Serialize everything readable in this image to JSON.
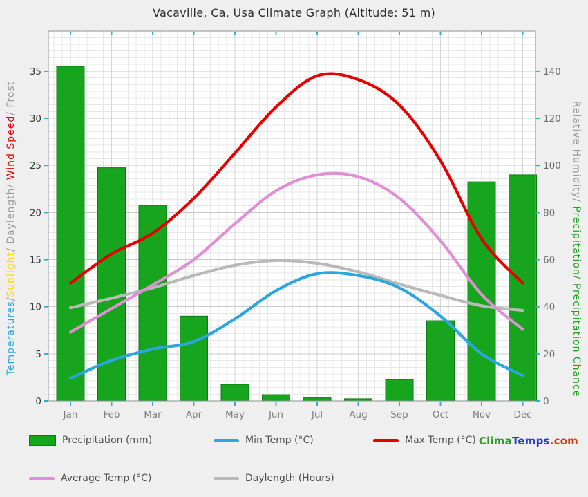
{
  "title": "Vacaville, Ca, Usa Climate Graph (Altitude: 51 m)",
  "watermark": {
    "clima": "Clima",
    "temps": "Temps",
    "com": ".com"
  },
  "legend": {
    "precipitation": "Precipitation (mm)",
    "min_temp": "Min Temp (°C)",
    "max_temp": "Max Temp (°C)",
    "avg_temp": "Average Temp (°C)",
    "daylength": "Daylength (Hours)"
  },
  "left_axis_label": {
    "segments": [
      {
        "text": "Temperatures",
        "color": "#2ba6e0"
      },
      {
        "text": "/",
        "color": "#9b9b9b"
      },
      {
        "text": "Sunlight",
        "color": "#ffd800"
      },
      {
        "text": "/ ",
        "color": "#9b9b9b"
      },
      {
        "text": "Daylength",
        "color": "#9b9b9b"
      },
      {
        "text": "/ ",
        "color": "#9b9b9b"
      },
      {
        "text": "Wind Speed",
        "color": "#e60000"
      },
      {
        "text": "/ ",
        "color": "#9b9b9b"
      },
      {
        "text": "Frost",
        "color": "#9b9b9b"
      }
    ]
  },
  "right_axis_label": {
    "segments": [
      {
        "text": "Relative Humidity/",
        "color": "#9b9b9b"
      },
      {
        "text": " Precipitation/",
        "color": "#17a51e"
      },
      {
        "text": " Precipitation Chance",
        "color": "#17a51e"
      }
    ]
  },
  "colors": {
    "precipitation_green": "#17a51e",
    "precipitation_border": "#0d7d12",
    "min_temp_blue": "#2ba6e0",
    "max_temp_red": "#e60000",
    "avg_temp_pink": "#e08fd6",
    "daylength_gray": "#b9b9b9",
    "tick_teal": "#2fb0c4",
    "watermark_green": "#2e9b2e",
    "watermark_blue": "#2b3bc8",
    "watermark_red": "#d04018"
  },
  "chart_data": {
    "type": "bar+line",
    "categories": [
      "Jan",
      "Feb",
      "Mar",
      "Apr",
      "May",
      "Jun",
      "Jul",
      "Aug",
      "Sep",
      "Oct",
      "Nov",
      "Dec"
    ],
    "left_axis": {
      "ticks": [
        0,
        5,
        10,
        15,
        20,
        25,
        30,
        35
      ],
      "range": [
        0,
        39.25
      ]
    },
    "right_axis": {
      "ticks": [
        0,
        20,
        40,
        60,
        80,
        100,
        120,
        140
      ],
      "ratio_to_left": 4
    },
    "series": [
      {
        "key": "precipitation",
        "name": "Precipitation (mm)",
        "type": "bar",
        "axis": "right",
        "color": "#17a51e",
        "border_color": "#0d7d12",
        "values": [
          142,
          99,
          83,
          36,
          7,
          2.6,
          1.3,
          0.9,
          9,
          34,
          93,
          96
        ]
      },
      {
        "key": "daylength",
        "name": "Daylength (Hours)",
        "type": "line",
        "axis": "left",
        "color": "#b9b9b9",
        "values": [
          9.9,
          10.9,
          12.0,
          13.3,
          14.4,
          14.9,
          14.6,
          13.7,
          12.4,
          11.2,
          10.1,
          9.6
        ]
      },
      {
        "key": "min_temp",
        "name": "Min Temp (°C)",
        "type": "line",
        "axis": "left",
        "color": "#2ba6e0",
        "values": [
          2.4,
          4.3,
          5.5,
          6.3,
          8.7,
          11.7,
          13.5,
          13.3,
          12.0,
          9.0,
          5.0,
          2.7
        ]
      },
      {
        "key": "avg_temp",
        "name": "Average Temp (°C)",
        "type": "line",
        "axis": "left",
        "color": "#e08fd6",
        "values": [
          7.3,
          9.8,
          12.3,
          15.0,
          18.8,
          22.3,
          24.0,
          23.8,
          21.5,
          17.0,
          11.3,
          7.6
        ]
      },
      {
        "key": "max_temp",
        "name": "Max Temp (°C)",
        "type": "line",
        "axis": "left",
        "color": "#e60000",
        "values": [
          12.5,
          15.6,
          17.8,
          21.5,
          26.3,
          31.2,
          34.5,
          34.1,
          31.4,
          25.5,
          17.2,
          12.5
        ]
      }
    ]
  }
}
